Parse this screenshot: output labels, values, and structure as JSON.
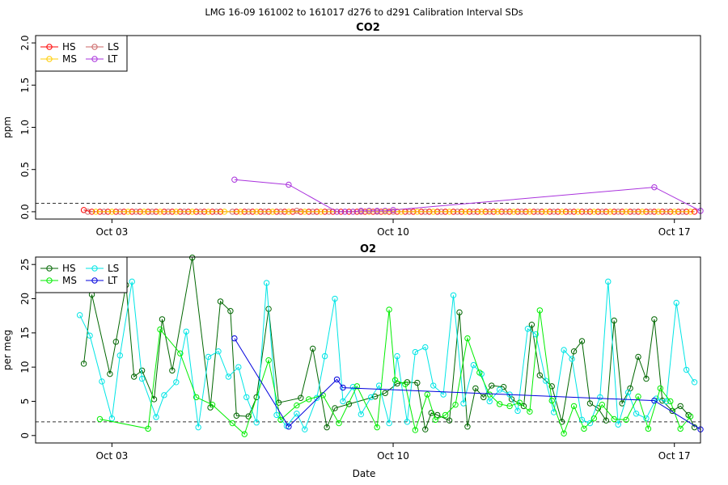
{
  "page_title": "LMG   16-09    161002 to 161017    d276 to d291   Calibration Interval SDs",
  "xlabel": "Date",
  "x_ticks": [
    "Oct 03",
    "Oct 10",
    "Oct 17"
  ],
  "chart_data": [
    {
      "type": "line",
      "title": "CO2",
      "ylabel": "ppm",
      "xlim": [
        1.1,
        17.65
      ],
      "ylim": [
        0,
        2.0
      ],
      "y_ticks": [
        "0.0",
        "0.5",
        "1.0",
        "1.5",
        "2.0"
      ],
      "reference_line": 0.1,
      "legend": {
        "position": "top-left",
        "entries": [
          {
            "label": "HS",
            "color": "#ff0000"
          },
          {
            "label": "LS",
            "color": "#cc6666"
          },
          {
            "label": "MS",
            "color": "#ffcc00"
          },
          {
            "label": "LT",
            "color": "#aa33dd"
          }
        ]
      },
      "series": [
        {
          "name": "HS",
          "color": "#ff0000",
          "x": [
            2.3,
            2.5,
            2.7,
            2.9,
            3.1,
            3.3,
            3.5,
            3.7,
            3.9,
            4.1,
            4.3,
            4.5,
            4.7,
            4.9,
            5.1,
            5.3,
            5.5,
            5.7,
            6.1,
            6.3,
            6.5,
            6.7,
            6.9,
            7.1,
            7.3,
            7.5,
            7.7,
            7.9,
            8.1,
            8.3,
            8.5,
            8.7,
            8.9,
            9.1,
            9.3,
            9.5,
            9.7,
            9.9,
            10.1,
            10.3,
            10.5,
            10.7,
            10.9,
            11.1,
            11.3,
            11.5,
            11.7,
            11.9,
            12.1,
            12.3,
            12.5,
            12.7,
            12.9,
            13.1,
            13.3,
            13.5,
            13.7,
            13.9,
            14.1,
            14.3,
            14.5,
            14.7,
            14.9,
            15.1,
            15.3,
            15.5,
            15.7,
            15.9,
            16.1,
            16.3,
            16.5,
            16.7,
            16.9,
            17.1,
            17.3,
            17.5
          ],
          "y": [
            0.02,
            0.0,
            0.0,
            0.0,
            0.0,
            0.0,
            0.0,
            0.0,
            0.0,
            0.0,
            0.0,
            0.0,
            0.0,
            0.0,
            0.0,
            0.0,
            0.0,
            0.0,
            0.0,
            0.0,
            0.0,
            0.0,
            0.0,
            0.0,
            0.0,
            0.0,
            0.0,
            0.0,
            0.0,
            0.0,
            0.0,
            0.0,
            0.0,
            0.0,
            0.0,
            0.0,
            0.0,
            0.0,
            0.0,
            0.0,
            0.0,
            0.0,
            0.0,
            0.0,
            0.0,
            0.0,
            0.0,
            0.0,
            0.0,
            0.0,
            0.0,
            0.0,
            0.0,
            0.0,
            0.0,
            0.0,
            0.0,
            0.0,
            0.0,
            0.0,
            0.0,
            0.0,
            0.0,
            0.0,
            0.0,
            0.0,
            0.0,
            0.0,
            0.0,
            0.0,
            0.0,
            0.0,
            0.0,
            0.0,
            0.0,
            0.0
          ]
        },
        {
          "name": "LS",
          "color": "#cc6666",
          "x": [
            2.4,
            2.8,
            3.2,
            3.6,
            4.0,
            4.4,
            4.8,
            5.2,
            5.6,
            6.0,
            6.4,
            6.8,
            7.2,
            7.6,
            8.0,
            8.4,
            8.8,
            9.2,
            9.6,
            10.0,
            10.4,
            10.8,
            11.2,
            11.6,
            12.0,
            12.4,
            12.8,
            13.2,
            13.6,
            14.0,
            14.4,
            14.8,
            15.2,
            15.6,
            16.0,
            16.4,
            16.8,
            17.2
          ],
          "y": [
            0.0,
            0.0,
            0.0,
            0.0,
            0.0,
            0.0,
            0.0,
            0.0,
            0.0,
            0.0,
            0.0,
            0.0,
            0.0,
            0.01,
            0.0,
            0.0,
            0.0,
            0.0,
            0.0,
            0.0,
            0.0,
            0.0,
            0.0,
            0.0,
            0.0,
            0.0,
            0.0,
            0.0,
            0.0,
            0.0,
            0.0,
            0.0,
            0.0,
            0.0,
            0.0,
            0.0,
            0.0,
            0.0
          ]
        },
        {
          "name": "MS",
          "color": "#ffcc00",
          "x": [
            2.6,
            3.0,
            3.4,
            3.8,
            4.2,
            4.6,
            5.0,
            5.4,
            5.8,
            6.2,
            6.6,
            7.0,
            7.4,
            7.8,
            8.2,
            8.6,
            9.0,
            9.4,
            9.8,
            10.2,
            10.6,
            11.0,
            11.4,
            11.8,
            12.2,
            12.6,
            13.0,
            13.4,
            13.8,
            14.2,
            14.6,
            15.0,
            15.4,
            15.8,
            16.2,
            16.6,
            17.0,
            17.4
          ],
          "y": [
            0.0,
            0.0,
            0.0,
            0.0,
            0.0,
            0.0,
            0.0,
            0.0,
            0.0,
            0.0,
            0.0,
            0.0,
            0.0,
            0.0,
            0.0,
            0.0,
            0.0,
            0.0,
            0.0,
            0.0,
            0.0,
            0.0,
            0.0,
            0.0,
            0.0,
            0.0,
            0.0,
            0.0,
            0.0,
            0.0,
            0.0,
            0.0,
            0.0,
            0.0,
            0.0,
            0.0,
            0.0,
            0.0
          ]
        },
        {
          "name": "LT",
          "color": "#aa33dd",
          "x": [
            6.05,
            7.4,
            8.6,
            8.8,
            9.0,
            9.2,
            9.4,
            9.6,
            9.8,
            10.0,
            16.5,
            17.65
          ],
          "y": [
            0.38,
            0.32,
            0.0,
            0.0,
            0.0,
            0.01,
            0.01,
            0.01,
            0.01,
            0.02,
            0.29,
            0.01
          ]
        }
      ]
    },
    {
      "type": "line",
      "title": "O2",
      "ylabel": "per meg",
      "xlim": [
        1.1,
        17.65
      ],
      "ylim": [
        0,
        25
      ],
      "y_ticks": [
        "0",
        "5",
        "10",
        "15",
        "20",
        "25"
      ],
      "reference_line": 2,
      "legend": {
        "position": "top-left",
        "entries": [
          {
            "label": "HS",
            "color": "#006600"
          },
          {
            "label": "LS",
            "color": "#00e5e5"
          },
          {
            "label": "MS",
            "color": "#00ee00"
          },
          {
            "label": "LT",
            "color": "#0000dd"
          }
        ]
      },
      "series": [
        {
          "name": "HS",
          "color": "#006600",
          "x": [
            2.3,
            2.5,
            2.95,
            3.1,
            3.35,
            3.55,
            3.75,
            4.05,
            4.25,
            4.5,
            5.0,
            5.45,
            5.7,
            5.95,
            6.1,
            6.4,
            6.6,
            6.9,
            7.15,
            7.7,
            8.0,
            8.35,
            8.55,
            8.9,
            9.55,
            9.8,
            10.1,
            10.35,
            10.6,
            10.8,
            10.95,
            11.1,
            11.4,
            11.65,
            11.85,
            12.05,
            12.25,
            12.45,
            12.75,
            12.95,
            13.25,
            13.45,
            13.65,
            13.95,
            14.2,
            14.5,
            14.7,
            14.9,
            15.1,
            15.3,
            15.5,
            15.7,
            15.9,
            16.1,
            16.3,
            16.5,
            16.7,
            16.95,
            17.15,
            17.35,
            17.5
          ],
          "y": [
            10.5,
            20.6,
            9.0,
            13.7,
            22.0,
            8.6,
            9.5,
            5.3,
            17.0,
            9.5,
            26.0,
            4.1,
            19.6,
            18.2,
            2.9,
            2.8,
            5.6,
            18.5,
            4.8,
            5.5,
            12.7,
            1.2,
            4.0,
            4.6,
            5.7,
            6.2,
            7.6,
            7.8,
            7.7,
            0.9,
            3.3,
            3.0,
            2.2,
            18.0,
            1.3,
            6.9,
            5.6,
            7.3,
            7.1,
            5.3,
            4.3,
            16.2,
            8.8,
            7.2,
            2.0,
            12.3,
            13.8,
            4.7,
            4.0,
            2.2,
            16.8,
            4.7,
            6.9,
            11.5,
            8.3,
            17.0,
            5.1,
            3.6,
            4.3,
            3.0,
            1.2
          ]
        },
        {
          "name": "LS",
          "color": "#00e5e5",
          "x": [
            2.2,
            2.45,
            2.75,
            3.0,
            3.2,
            3.5,
            3.75,
            4.1,
            4.3,
            4.6,
            4.85,
            5.15,
            5.4,
            5.65,
            5.9,
            6.15,
            6.35,
            6.6,
            6.85,
            7.1,
            7.35,
            7.6,
            7.8,
            8.1,
            8.3,
            8.55,
            8.75,
            9.0,
            9.2,
            9.45,
            9.65,
            9.9,
            10.1,
            10.35,
            10.55,
            10.8,
            11.0,
            11.25,
            11.5,
            11.75,
            12.0,
            12.2,
            12.4,
            12.65,
            12.9,
            13.1,
            13.35,
            13.55,
            13.8,
            14.0,
            14.25,
            14.45,
            14.7,
            14.9,
            15.15,
            15.35,
            15.6,
            15.85,
            16.05,
            16.3,
            16.55,
            16.8,
            17.05,
            17.3,
            17.5
          ],
          "y": [
            17.6,
            14.6,
            7.9,
            2.5,
            11.7,
            22.5,
            8.3,
            2.7,
            5.9,
            7.8,
            15.2,
            1.2,
            11.5,
            12.3,
            8.6,
            10.0,
            5.6,
            1.9,
            22.3,
            3.0,
            1.4,
            3.2,
            0.9,
            5.5,
            11.6,
            20.0,
            5.0,
            7.1,
            3.1,
            5.6,
            7.3,
            1.8,
            11.6,
            2.0,
            12.2,
            12.9,
            7.3,
            6.0,
            20.5,
            4.7,
            10.3,
            9.0,
            5.0,
            6.7,
            6.0,
            3.6,
            15.6,
            14.8,
            8.0,
            3.4,
            12.5,
            11.2,
            2.3,
            1.8,
            5.6,
            22.5,
            1.6,
            6.3,
            3.2,
            2.5,
            5.4,
            5.0,
            19.4,
            9.6,
            7.8
          ]
        },
        {
          "name": "MS",
          "color": "#00ee00",
          "x": [
            2.7,
            3.9,
            4.2,
            4.7,
            5.1,
            5.5,
            6.0,
            6.3,
            6.9,
            7.2,
            7.6,
            7.9,
            8.25,
            8.65,
            9.1,
            9.6,
            9.9,
            10.05,
            10.3,
            10.55,
            10.85,
            11.05,
            11.3,
            11.55,
            11.85,
            12.15,
            12.4,
            12.65,
            12.9,
            13.15,
            13.4,
            13.65,
            13.95,
            14.25,
            14.5,
            14.75,
            15.0,
            15.2,
            15.5,
            15.8,
            16.1,
            16.35,
            16.65,
            16.9,
            17.15,
            17.4
          ],
          "y": [
            2.4,
            1.0,
            15.5,
            12.0,
            5.6,
            4.5,
            1.8,
            0.2,
            11.0,
            2.3,
            4.4,
            5.3,
            5.9,
            1.8,
            7.2,
            1.2,
            18.4,
            8.1,
            7.5,
            0.8,
            6.0,
            2.3,
            3.0,
            4.5,
            14.2,
            9.2,
            6.0,
            4.6,
            4.3,
            4.8,
            3.5,
            18.3,
            5.1,
            0.3,
            4.3,
            1.0,
            2.5,
            4.5,
            2.4,
            2.3,
            5.7,
            1.0,
            6.9,
            5.0,
            1.0,
            2.8
          ]
        },
        {
          "name": "LT",
          "color": "#0000dd",
          "x": [
            6.05,
            7.4,
            8.6,
            8.75,
            16.5,
            17.65
          ],
          "y": [
            14.2,
            1.3,
            8.2,
            7.0,
            5.1,
            0.9
          ]
        }
      ]
    }
  ]
}
